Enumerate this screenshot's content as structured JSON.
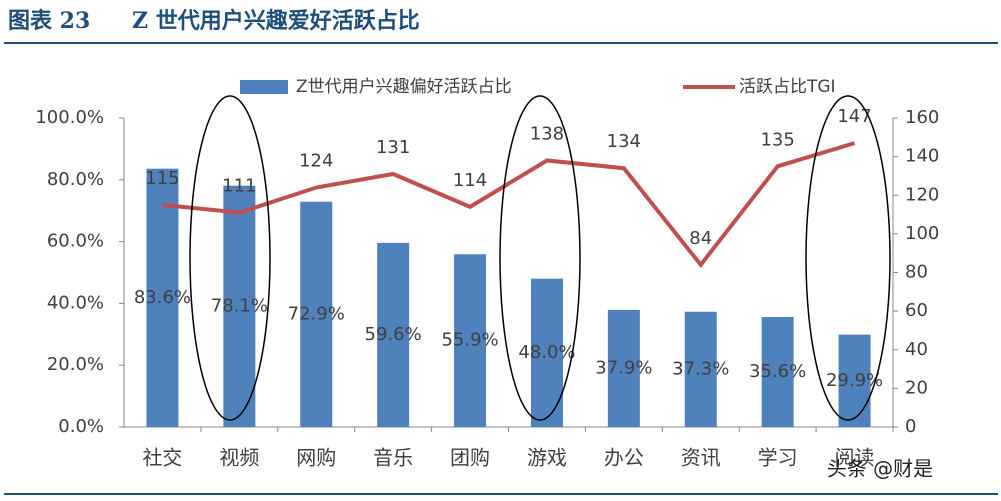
{
  "chart_data": {
    "type": "combo",
    "figure_label": "图表 23",
    "title": "Z 世代用户兴趣爱好活跃占比",
    "categories": [
      "社交",
      "视频",
      "网购",
      "音乐",
      "团购",
      "游戏",
      "办公",
      "资讯",
      "学习",
      "阅读"
    ],
    "series": [
      {
        "name": "Z世代用户兴趣偏好活跃占比",
        "type": "bar",
        "color": "#4f81bd",
        "values": [
          83.6,
          78.1,
          72.9,
          59.6,
          55.9,
          48.0,
          37.9,
          37.3,
          35.6,
          29.9
        ],
        "value_labels": [
          "83.6%",
          "78.1%",
          "72.9%",
          "59.6%",
          "55.9%",
          "48.0%",
          "37.9%",
          "37.3%",
          "35.6%",
          "29.9%"
        ]
      },
      {
        "name": "活跃占比TGI",
        "type": "line",
        "axis": "y2",
        "color": "#c0504d",
        "values": [
          115,
          111,
          124,
          131,
          114,
          138,
          134,
          84,
          135,
          147
        ]
      }
    ],
    "ylim": [
      0,
      100
    ],
    "yticks": [
      {
        "value": 0,
        "label": "0.0%"
      },
      {
        "value": 20,
        "label": "20.0%"
      },
      {
        "value": 40,
        "label": "40.0%"
      },
      {
        "value": 60,
        "label": "60.0%"
      },
      {
        "value": 80,
        "label": "80.0%"
      },
      {
        "value": 100,
        "label": "100.0%"
      }
    ],
    "y2lim": [
      0,
      160
    ],
    "y2ticks": [
      0,
      20,
      40,
      60,
      80,
      100,
      120,
      140,
      160
    ],
    "watermark": "头条 @财是"
  }
}
